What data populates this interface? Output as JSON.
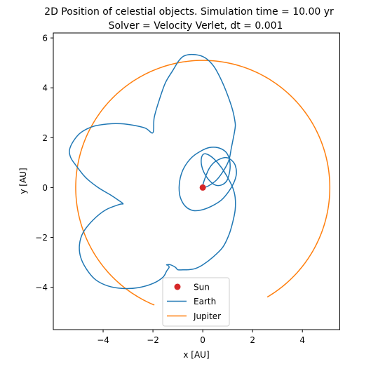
{
  "chart_data": {
    "type": "line",
    "title_line1": "2D Position of celestial objects. Simulation time = 10.00 yr",
    "title_line2": "Solver = Velocity Verlet,  dt = 0.001",
    "xlabel": "x [AU]",
    "ylabel": "y [AU]",
    "xlim": [
      -6.0,
      5.5
    ],
    "ylim": [
      -5.7,
      6.2
    ],
    "xticks": [
      -4,
      -2,
      0,
      2,
      4
    ],
    "yticks": [
      -4,
      -2,
      0,
      2,
      4,
      6
    ],
    "xtick_labels": [
      "−4",
      "−2",
      "0",
      "2",
      "4"
    ],
    "ytick_labels": [
      "−4",
      "−2",
      "0",
      "2",
      "4",
      "6"
    ],
    "grid": false,
    "legend_position": "lower-center",
    "legend": [
      "Sun",
      "Earth",
      "Jupiter"
    ],
    "colors": {
      "sun": "#d62728",
      "earth": "#1f77b4",
      "jupiter": "#ff7f0e"
    },
    "series": [
      {
        "name": "Sun",
        "kind": "point",
        "x": [
          0.0
        ],
        "y": [
          0.0
        ]
      },
      {
        "name": "Earth",
        "kind": "line",
        "x": [
          0.0,
          0.2,
          0.55,
          0.85,
          1.05,
          1.15,
          1.25,
          1.3,
          1.3,
          1.2,
          1.0,
          0.75,
          0.45,
          0.1,
          -0.3,
          -0.7,
          -0.95,
          -1.2,
          -1.5,
          -1.75,
          -1.95,
          -2.0,
          -2.3,
          -2.8,
          -3.3,
          -3.8,
          -4.4,
          -4.9,
          -5.2,
          -5.35,
          -5.3,
          -5.1,
          -4.7,
          -4.2,
          -3.7,
          -3.4,
          -3.2,
          -3.35,
          -3.9,
          -4.4,
          -4.8,
          -4.95,
          -4.9,
          -4.65,
          -4.3,
          -3.8,
          -3.2,
          -2.6,
          -2.0,
          -1.6,
          -1.45,
          -1.35,
          -1.4,
          -1.45,
          -1.3,
          -1.1,
          -1.0,
          -0.8,
          -0.6,
          -0.3,
          0.0,
          0.4,
          0.8,
          1.05,
          1.2,
          1.3,
          1.3,
          1.2,
          1.0,
          0.75,
          0.5,
          0.25,
          0.05,
          -0.05,
          -0.05,
          0.05,
          0.25,
          0.5,
          0.75,
          0.95,
          1.05,
          1.1,
          1.05,
          0.9,
          0.6,
          0.25,
          -0.1,
          -0.45,
          -0.75,
          -0.9,
          -0.95,
          -0.9,
          -0.7,
          -0.4,
          -0.05,
          0.35,
          0.75,
          1.05,
          1.25,
          1.35,
          1.3,
          1.15,
          0.95,
          0.7,
          0.45,
          0.25,
          0.1,
          0.0
        ],
        "y": [
          0.0,
          0.05,
          0.3,
          0.7,
          1.1,
          1.6,
          2.1,
          2.4,
          2.6,
          3.1,
          3.7,
          4.3,
          4.85,
          5.2,
          5.33,
          5.3,
          5.1,
          4.7,
          4.2,
          3.5,
          2.8,
          2.2,
          2.38,
          2.5,
          2.56,
          2.55,
          2.45,
          2.2,
          1.85,
          1.5,
          1.2,
          0.9,
          0.4,
          0.0,
          -0.3,
          -0.5,
          -0.65,
          -0.68,
          -0.9,
          -1.3,
          -1.8,
          -2.3,
          -2.8,
          -3.3,
          -3.7,
          -3.95,
          -4.05,
          -4.02,
          -3.85,
          -3.6,
          -3.35,
          -3.2,
          -3.12,
          -3.1,
          -3.1,
          -3.2,
          -3.3,
          -3.3,
          -3.3,
          -3.25,
          -3.1,
          -2.8,
          -2.4,
          -1.9,
          -1.4,
          -0.9,
          -0.4,
          0.0,
          0.4,
          0.8,
          1.1,
          1.3,
          1.35,
          1.2,
          0.9,
          0.6,
          0.3,
          0.1,
          0.1,
          0.25,
          0.5,
          0.85,
          1.2,
          1.45,
          1.6,
          1.6,
          1.45,
          1.2,
          0.8,
          0.4,
          0.0,
          -0.4,
          -0.75,
          -0.92,
          -0.9,
          -0.75,
          -0.5,
          -0.15,
          0.2,
          0.55,
          0.9,
          1.1,
          1.2,
          1.15,
          1.0,
          0.75,
          0.4,
          0.1
        ]
      },
      {
        "name": "Jupiter",
        "kind": "arc",
        "center": [
          0.0,
          0.0
        ],
        "radius": 5.1,
        "start_deg": -59.5,
        "end_deg": 247.6
      }
    ]
  }
}
